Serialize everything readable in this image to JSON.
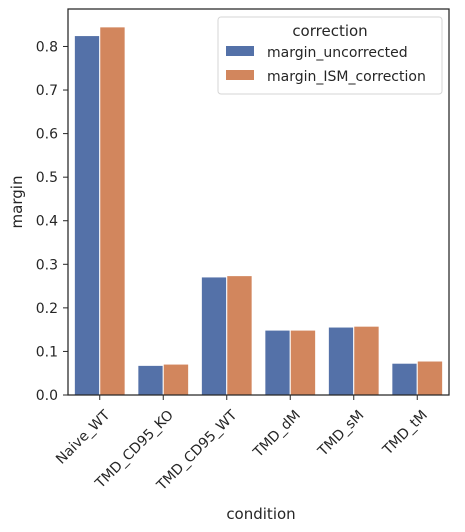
{
  "chart_data": {
    "type": "bar",
    "title": "",
    "xlabel": "condition",
    "ylabel": "margin",
    "categories": [
      "Naive_WT",
      "TMD_CD95_KO",
      "TMD_CD95_WT",
      "TMD_dM",
      "TMD_sM",
      "TMD_tM"
    ],
    "series": [
      {
        "name": "margin_uncorrected",
        "values": [
          0.825,
          0.068,
          0.271,
          0.149,
          0.156,
          0.073
        ]
      },
      {
        "name": "margin_ISM_correction",
        "values": [
          0.845,
          0.071,
          0.274,
          0.149,
          0.158,
          0.078
        ]
      }
    ],
    "ylim": [
      0,
      0.886
    ],
    "yticks": [
      "0.0",
      "0.1",
      "0.2",
      "0.3",
      "0.4",
      "0.5",
      "0.6",
      "0.7",
      "0.8"
    ],
    "grid": false,
    "legend": {
      "title": "correction",
      "placement": "top-right"
    },
    "colors": [
      "#5471a8",
      "#d2865d"
    ]
  }
}
